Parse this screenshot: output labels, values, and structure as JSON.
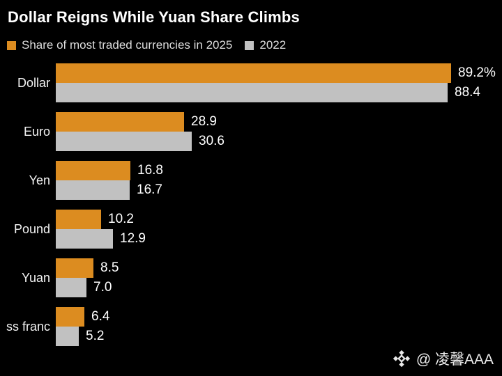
{
  "title": "Dollar Reigns While Yuan Share Climbs",
  "legend": {
    "series_2025_label": "Share of most traded currencies in 2025",
    "series_2022_label": "2022"
  },
  "colors": {
    "background": "#000000",
    "bar_2025": "#DC8C20",
    "bar_2022": "#C1C1C1",
    "text": "#FFFFFF"
  },
  "chart_data": {
    "type": "bar",
    "orientation": "horizontal",
    "title": "Dollar Reigns While Yuan Share Climbs",
    "categories": [
      "Dollar",
      "Euro",
      "Yen",
      "Pound",
      "Yuan",
      "ss franc"
    ],
    "series": [
      {
        "name": "Share of most traded currencies in 2025",
        "color": "#DC8C20",
        "values": [
          89.2,
          28.9,
          16.8,
          10.2,
          8.5,
          6.4
        ],
        "value_labels": [
          "89.2%",
          "28.9",
          "16.8",
          "10.2",
          "8.5",
          "6.4"
        ]
      },
      {
        "name": "2022",
        "color": "#C1C1C1",
        "values": [
          88.4,
          30.6,
          16.7,
          12.9,
          7.0,
          5.2
        ],
        "value_labels": [
          "88.4",
          "30.6",
          "16.7",
          "12.9",
          "7.0",
          "5.2"
        ]
      }
    ],
    "xlim": [
      0,
      100
    ],
    "axes_visible": false,
    "grid": false,
    "legend_position": "top-left",
    "value_labels_position": "right-of-bar"
  },
  "watermark": {
    "icon": "diamond-logo-icon",
    "text": "@ 凌馨AAA"
  }
}
